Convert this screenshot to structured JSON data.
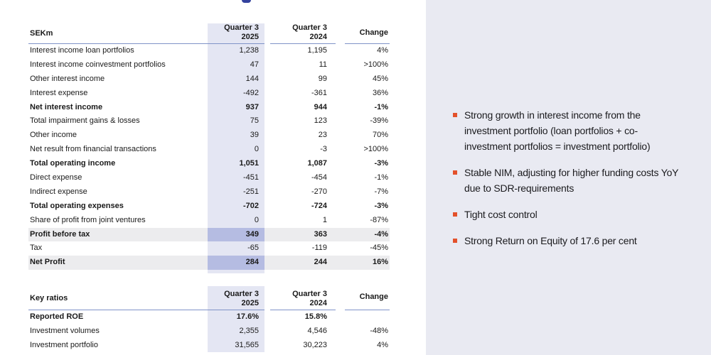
{
  "colors": {
    "accent_blue": "#34429e",
    "lavender_light": "#e4e6f3",
    "lavender_dark": "#b5bce2",
    "row_gray": "#ececee",
    "line_blue": "#8093c8",
    "panel_bg": "#e9eaf2",
    "bullet_orange": "#e3512b",
    "text": "#1a1a1a"
  },
  "tables": [
    {
      "label_header": "SEKm",
      "columns": [
        {
          "lines": [
            "Quarter 3",
            "2025"
          ]
        },
        {
          "lines": [
            "Quarter 3",
            "2024"
          ]
        },
        {
          "lines": [
            "Change"
          ]
        }
      ],
      "rows": [
        {
          "label": "Interest income loan portfolios",
          "q2025": "1,238",
          "q2024": "1,195",
          "change": "4%"
        },
        {
          "label": "Interest income coinvestment portfolios",
          "q2025": "47",
          "q2024": "11",
          "change": ">100%"
        },
        {
          "label": "Other interest income",
          "q2025": "144",
          "q2024": "99",
          "change": "45%"
        },
        {
          "label": "Interest expense",
          "q2025": "-492",
          "q2024": "-361",
          "change": "36%"
        },
        {
          "label": "Net interest income",
          "q2025": "937",
          "q2024": "944",
          "change": "-1%",
          "bold": true
        },
        {
          "label": "Total impairment gains & losses",
          "q2025": "75",
          "q2024": "123",
          "change": "-39%"
        },
        {
          "label": "Other income",
          "q2025": "39",
          "q2024": "23",
          "change": "70%"
        },
        {
          "label": "Net result from financial transactions",
          "q2025": "0",
          "q2024": "-3",
          "change": ">100%"
        },
        {
          "label": "Total operating income",
          "q2025": "1,051",
          "q2024": "1,087",
          "change": "-3%",
          "bold": true
        },
        {
          "label": "Direct expense",
          "q2025": "-451",
          "q2024": "-454",
          "change": "-1%"
        },
        {
          "label": "Indirect expense",
          "q2025": "-251",
          "q2024": "-270",
          "change": "-7%"
        },
        {
          "label": "Total operating expenses",
          "q2025": "-702",
          "q2024": "-724",
          "change": "-3%",
          "bold": true
        },
        {
          "label": "Share of profit from joint ventures",
          "q2025": "0",
          "q2024": "1",
          "change": "-87%"
        },
        {
          "label": "Profit before tax",
          "q2025": "349",
          "q2024": "363",
          "change": "-4%",
          "bold": true,
          "highlight": true
        },
        {
          "label": "Tax",
          "q2025": "-65",
          "q2024": "-119",
          "change": "-45%"
        },
        {
          "label": "Net Profit",
          "q2025": "284",
          "q2024": "244",
          "change": "16%",
          "bold": true,
          "highlight": true
        }
      ]
    },
    {
      "label_header": "Key ratios",
      "columns": [
        {
          "lines": [
            "Quarter 3",
            "2025"
          ]
        },
        {
          "lines": [
            "Quarter 3",
            "2024"
          ]
        },
        {
          "lines": [
            "Change"
          ]
        }
      ],
      "rows": [
        {
          "label": "Reported ROE",
          "q2025": "17.6%",
          "q2024": "15.8%",
          "change": "",
          "bold": true
        },
        {
          "label": "Investment volumes",
          "q2025": "2,355",
          "q2024": "4,546",
          "change": "-48%"
        },
        {
          "label": "Investment portfolio",
          "q2025": "31,565",
          "q2024": "30,223",
          "change": "4%"
        }
      ]
    }
  ],
  "bullets": [
    {
      "lines": [
        "Strong growth in interest income from the",
        "investment portfolio (loan portfolios + co-",
        "investment portfolios = investment portfolio)"
      ]
    },
    {
      "lines": [
        "Stable NIM,  adjusting for higher funding costs YoY",
        "due to SDR-requirements"
      ]
    },
    {
      "lines": [
        "Tight cost control"
      ]
    },
    {
      "lines": [
        "Strong Return on Equity of 17.6 per cent"
      ]
    }
  ]
}
